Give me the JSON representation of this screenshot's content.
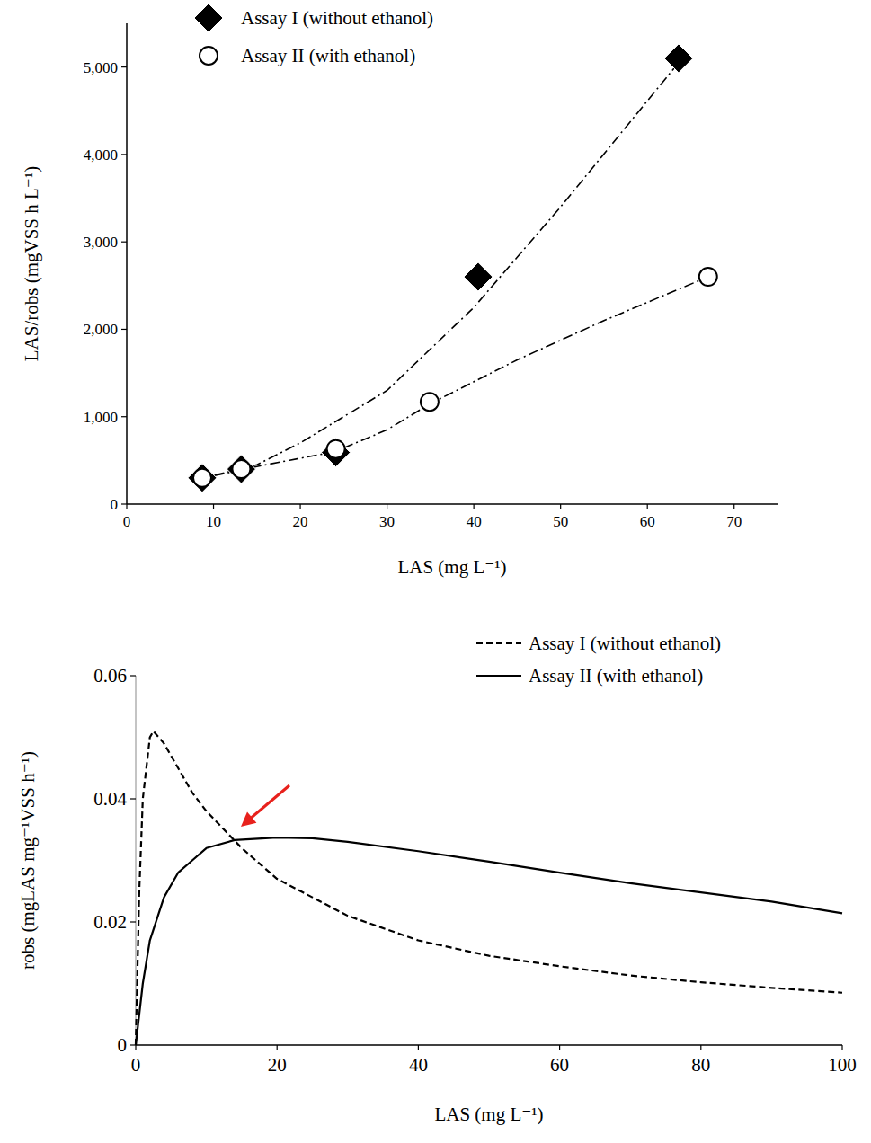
{
  "chart_data": [
    {
      "type": "scatter",
      "x_label": "LAS (mg L⁻¹)",
      "y_label": "LAS/robs (mgVSS h L⁻¹)",
      "xlim": [
        0,
        75
      ],
      "ylim": [
        0,
        5500
      ],
      "xticks": [
        0,
        10,
        20,
        30,
        40,
        50,
        60,
        70
      ],
      "yticks": [
        0,
        {
          "value": 1000,
          "label": "1,000"
        },
        {
          "value": 2000,
          "label": "2,000"
        },
        {
          "value": 3000,
          "label": "3,000"
        },
        {
          "value": 4000,
          "label": "4,000"
        },
        {
          "value": 5000,
          "label": "5,000"
        }
      ],
      "legend": "top",
      "series": [
        {
          "type": "line",
          "line_style": "dashdot",
          "color": "#000000",
          "x": [
            8,
            15,
            20,
            30,
            40,
            50,
            63.6
          ],
          "values": [
            280,
            450,
            700,
            1300,
            2250,
            3400,
            5050
          ]
        },
        {
          "type": "line",
          "line_style": "dashdot",
          "color": "#000000",
          "x": [
            8,
            15,
            24,
            30,
            35,
            45,
            55,
            67
          ],
          "values": [
            280,
            430,
            600,
            850,
            1150,
            1650,
            2100,
            2600
          ]
        },
        {
          "name": "Assay I (without ethanol)",
          "type": "scatter",
          "marker": "diamond",
          "color": "#000000",
          "x": [
            8.7,
            13.2,
            24.1,
            40.5,
            63.6
          ],
          "values": [
            300,
            400,
            590,
            2600,
            5100
          ]
        },
        {
          "name": "Assay II (with ethanol)",
          "type": "scatter",
          "marker": "circle",
          "color": "#000000",
          "x": [
            8.7,
            13.2,
            24.1,
            34.9,
            67
          ],
          "values": [
            300,
            400,
            630,
            1170,
            2600
          ]
        }
      ]
    },
    {
      "type": "line",
      "x_label": "LAS (mg L⁻¹)",
      "y_label": "robs (mgLAS mg⁻¹VSS h⁻¹)",
      "xlim": [
        0,
        100
      ],
      "ylim": [
        0,
        0.06
      ],
      "xticks": [
        0,
        20,
        40,
        60,
        80,
        100
      ],
      "yticks": [
        0,
        0.02,
        0.04,
        0.06
      ],
      "legend": "top-right",
      "series": [
        {
          "name": "Assay I (without ethanol)",
          "type": "line",
          "line_style": "dashed",
          "color": "#000000",
          "x": [
            0,
            0.5,
            1,
            2,
            2.5,
            4,
            6,
            8,
            10,
            15,
            20,
            30,
            40,
            50,
            60,
            70,
            80,
            90,
            100
          ],
          "values": [
            0,
            0.025,
            0.04,
            0.05,
            0.051,
            0.049,
            0.045,
            0.041,
            0.038,
            0.032,
            0.027,
            0.021,
            0.017,
            0.0145,
            0.0128,
            0.0113,
            0.0102,
            0.0093,
            0.0085
          ]
        },
        {
          "name": "Assay II (with ethanol)",
          "type": "line",
          "line_style": "solid",
          "color": "#000000",
          "x": [
            0,
            1,
            2,
            4,
            6,
            8,
            10,
            14,
            20,
            25,
            30,
            40,
            50,
            60,
            70,
            80,
            90,
            100
          ],
          "values": [
            0,
            0.01,
            0.017,
            0.024,
            0.028,
            0.03,
            0.032,
            0.0333,
            0.0337,
            0.0336,
            0.033,
            0.0315,
            0.0298,
            0.028,
            0.0263,
            0.0248,
            0.0233,
            0.0214
          ]
        }
      ]
    }
  ]
}
